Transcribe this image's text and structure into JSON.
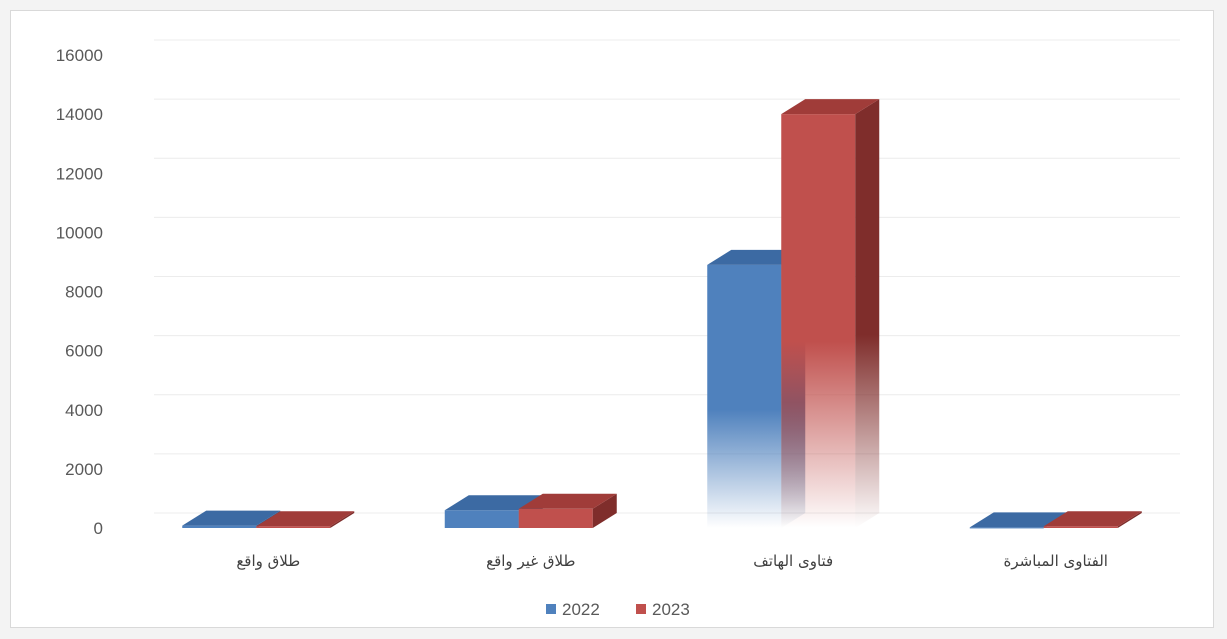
{
  "chart_data": {
    "type": "bar",
    "categories": [
      "طلاق واقع",
      "طلاق غير واقع",
      "فتاوى الهاتف",
      "الفتاوى المباشرة"
    ],
    "series": [
      {
        "name": "2022",
        "values": [
          80,
          600,
          8900,
          20
        ]
      },
      {
        "name": "2023",
        "values": [
          60,
          650,
          14000,
          60
        ]
      }
    ],
    "yticks": [
      "0",
      "2000",
      "4000",
      "6000",
      "8000",
      "10000",
      "12000",
      "14000",
      "16000"
    ],
    "ylim": [
      0,
      16000
    ],
    "grid": true,
    "legend": "bottom-center",
    "colors": {
      "2022": "#4f81bd",
      "2023": "#c0504d"
    }
  }
}
